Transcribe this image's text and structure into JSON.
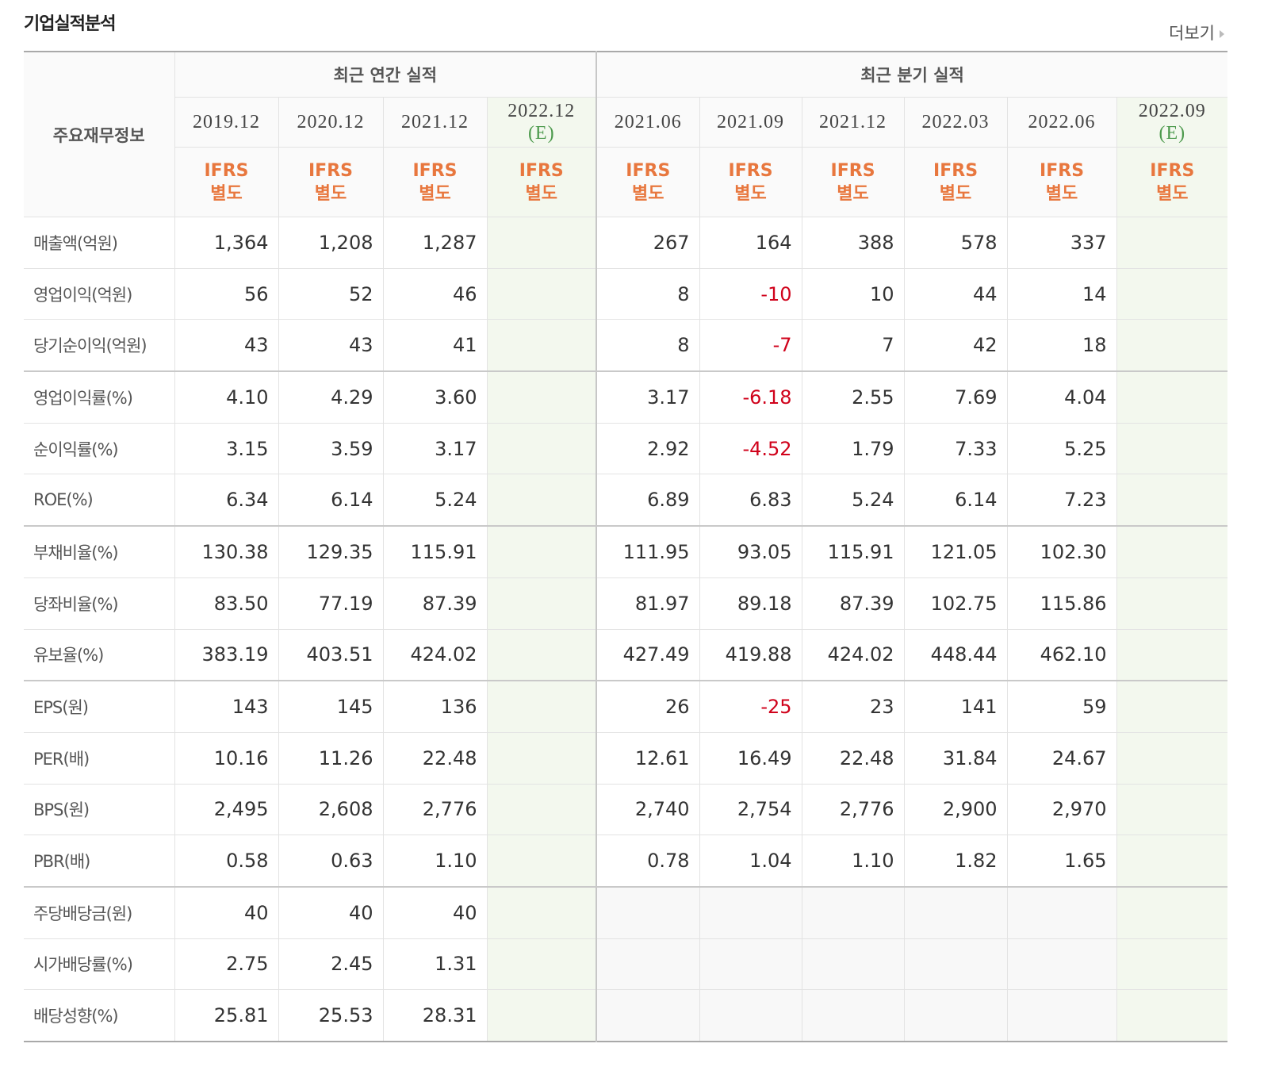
{
  "header": {
    "title": "기업실적분석",
    "more": "더보기"
  },
  "table": {
    "row_header": "주요재무정보",
    "groups": [
      {
        "label": "최근 연간 실적",
        "span": 4
      },
      {
        "label": "최근 분기 실적",
        "span": 6
      }
    ],
    "periods": [
      {
        "date": "2019.12"
      },
      {
        "date": "2020.12"
      },
      {
        "date": "2021.12"
      },
      {
        "date": "2022.12",
        "note": "(E)"
      },
      {
        "date": "2021.06"
      },
      {
        "date": "2021.09"
      },
      {
        "date": "2021.12"
      },
      {
        "date": "2022.03"
      },
      {
        "date": "2022.06"
      },
      {
        "date": "2022.09",
        "note": "(E)"
      }
    ],
    "basis": [
      [
        "IFRS",
        "별도"
      ],
      [
        "IFRS",
        "별도"
      ],
      [
        "IFRS",
        "별도"
      ],
      [
        "IFRS",
        "별도"
      ],
      [
        "IFRS",
        "별도"
      ],
      [
        "IFRS",
        "별도"
      ],
      [
        "IFRS",
        "별도"
      ],
      [
        "IFRS",
        "별도"
      ],
      [
        "IFRS",
        "별도"
      ],
      [
        "IFRS",
        "별도"
      ]
    ],
    "rows": [
      {
        "label": "매출액(억원)",
        "values": [
          "1,364",
          "1,208",
          "1,287",
          null,
          "267",
          "164",
          "388",
          "578",
          "337",
          null
        ]
      },
      {
        "label": "영업이익(억원)",
        "values": [
          "56",
          "52",
          "46",
          null,
          "8",
          "-10",
          "10",
          "44",
          "14",
          null
        ]
      },
      {
        "label": "당기순이익(억원)",
        "values": [
          "43",
          "43",
          "41",
          null,
          "8",
          "-7",
          "7",
          "42",
          "18",
          null
        ]
      },
      {
        "label": "영업이익률(%)",
        "values": [
          "4.10",
          "4.29",
          "3.60",
          null,
          "3.17",
          "-6.18",
          "2.55",
          "7.69",
          "4.04",
          null
        ]
      },
      {
        "label": "순이익률(%)",
        "values": [
          "3.15",
          "3.59",
          "3.17",
          null,
          "2.92",
          "-4.52",
          "1.79",
          "7.33",
          "5.25",
          null
        ]
      },
      {
        "label": "ROE(%)",
        "values": [
          "6.34",
          "6.14",
          "5.24",
          null,
          "6.89",
          "6.83",
          "5.24",
          "6.14",
          "7.23",
          null
        ]
      },
      {
        "label": "부채비율(%)",
        "values": [
          "130.38",
          "129.35",
          "115.91",
          null,
          "111.95",
          "93.05",
          "115.91",
          "121.05",
          "102.30",
          null
        ]
      },
      {
        "label": "당좌비율(%)",
        "values": [
          "83.50",
          "77.19",
          "87.39",
          null,
          "81.97",
          "89.18",
          "87.39",
          "102.75",
          "115.86",
          null
        ]
      },
      {
        "label": "유보율(%)",
        "values": [
          "383.19",
          "403.51",
          "424.02",
          null,
          "427.49",
          "419.88",
          "424.02",
          "448.44",
          "462.10",
          null
        ]
      },
      {
        "label": "EPS(원)",
        "values": [
          "143",
          "145",
          "136",
          null,
          "26",
          "-25",
          "23",
          "141",
          "59",
          null
        ]
      },
      {
        "label": "PER(배)",
        "values": [
          "10.16",
          "11.26",
          "22.48",
          null,
          "12.61",
          "16.49",
          "22.48",
          "31.84",
          "24.67",
          null
        ]
      },
      {
        "label": "BPS(원)",
        "values": [
          "2,495",
          "2,608",
          "2,776",
          null,
          "2,740",
          "2,754",
          "2,776",
          "2,900",
          "2,970",
          null
        ]
      },
      {
        "label": "PBR(배)",
        "values": [
          "0.58",
          "0.63",
          "1.10",
          null,
          "0.78",
          "1.04",
          "1.10",
          "1.82",
          "1.65",
          null
        ]
      },
      {
        "label": "주당배당금(원)",
        "values": [
          "40",
          "40",
          "40",
          null,
          null,
          null,
          null,
          null,
          null,
          null
        ]
      },
      {
        "label": "시가배당률(%)",
        "values": [
          "2.75",
          "2.45",
          "1.31",
          null,
          null,
          null,
          null,
          null,
          null,
          null
        ]
      },
      {
        "label": "배당성향(%)",
        "values": [
          "25.81",
          "25.53",
          "28.31",
          null,
          null,
          null,
          null,
          null,
          null,
          null
        ]
      }
    ]
  }
}
